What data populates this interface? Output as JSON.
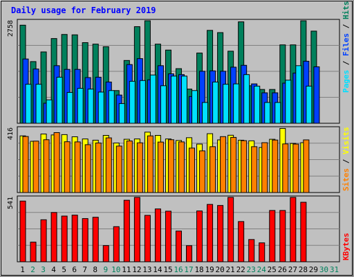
{
  "chart_data": [
    {
      "type": "bar",
      "panel": "hits_files_pages",
      "title": "Daily usage for February 2019",
      "y_max_label": "2758",
      "ylim": [
        0,
        2758
      ],
      "days": [
        "1",
        "2",
        "3",
        "4",
        "5",
        "6",
        "7",
        "8",
        "9",
        "10",
        "11",
        "12",
        "13",
        "14",
        "15",
        "16",
        "17",
        "18",
        "19",
        "20",
        "21",
        "22",
        "23",
        "24",
        "25",
        "26",
        "27",
        "28",
        "29",
        "30",
        "31"
      ],
      "weekend_days": [
        "2",
        "3",
        "9",
        "10",
        "16",
        "17",
        "23",
        "24",
        "30",
        "31"
      ],
      "legend": [
        {
          "label": "Hits",
          "color": "#00805c"
        },
        {
          "label": "Files",
          "color": "#0040ff"
        },
        {
          "label": "Pages",
          "color": "#00e0ff"
        }
      ],
      "series": [
        {
          "name": "Hits",
          "color": "#00805c",
          "values": [
            2640,
            1660,
            1920,
            2280,
            2390,
            2380,
            2170,
            2130,
            2060,
            880,
            1690,
            2600,
            2820,
            2130,
            1970,
            1470,
            920,
            1890,
            2500,
            2440,
            1940,
            2730,
            1010,
            910,
            910,
            2110,
            2110,
            2820,
            2480,
            0,
            0
          ]
        },
        {
          "name": "Files",
          "color": "#0040ff",
          "values": [
            1730,
            1460,
            540,
            1550,
            1450,
            1450,
            1230,
            1240,
            1110,
            760,
            1580,
            1740,
            1170,
            1550,
            1330,
            1310,
            720,
            1400,
            1410,
            1400,
            1510,
            1560,
            1060,
            820,
            820,
            1080,
            1350,
            1670,
            1520,
            0,
            0
          ]
        },
        {
          "name": "Pages",
          "color": "#00e0ff",
          "values": [
            1050,
            1050,
            630,
            1240,
            830,
            940,
            920,
            840,
            880,
            530,
            1130,
            1150,
            1300,
            1010,
            1270,
            1270,
            880,
            560,
            1110,
            1050,
            1060,
            1310,
            1000,
            560,
            560,
            1160,
            1550,
            1000,
            0,
            0,
            0
          ]
        }
      ]
    },
    {
      "type": "bar",
      "panel": "visits_sites",
      "y_max_label": "416",
      "ylim": [
        0,
        416
      ],
      "legend": [
        {
          "label": "Visits",
          "color": "#ffff00"
        },
        {
          "label": "Sites",
          "color": "#ff8000"
        }
      ],
      "series": [
        {
          "name": "Visits",
          "color": "#ffff00",
          "values": [
            366,
            331,
            378,
            372,
            374,
            360,
            346,
            338,
            369,
            320,
            344,
            346,
            390,
            369,
            346,
            336,
            354,
            313,
            380,
            340,
            370,
            338,
            334,
            291,
            344,
            414,
            317,
            322,
            0,
            0,
            0
          ]
        },
        {
          "name": "Sites",
          "color": "#ff8000",
          "values": [
            362,
            332,
            341,
            387,
            328,
            327,
            309,
            320,
            353,
            300,
            333,
            321,
            366,
            326,
            341,
            327,
            287,
            269,
            296,
            361,
            356,
            335,
            296,
            322,
            339,
            314,
            313,
            340,
            0,
            0,
            0
          ]
        }
      ]
    },
    {
      "type": "bar",
      "panel": "kbytes",
      "y_max_label": "541",
      "ylim": [
        0,
        541
      ],
      "legend": [
        {
          "label": "KBytes",
          "color": "#ff0000"
        }
      ],
      "series": [
        {
          "name": "KBytes",
          "color": "#ff0000",
          "values": [
            510,
            165,
            353,
            414,
            384,
            392,
            363,
            374,
            136,
            295,
            517,
            555,
            390,
            444,
            425,
            258,
            135,
            427,
            482,
            473,
            543,
            338,
            187,
            159,
            431,
            431,
            561,
            500,
            0,
            0,
            0
          ]
        }
      ]
    }
  ]
}
